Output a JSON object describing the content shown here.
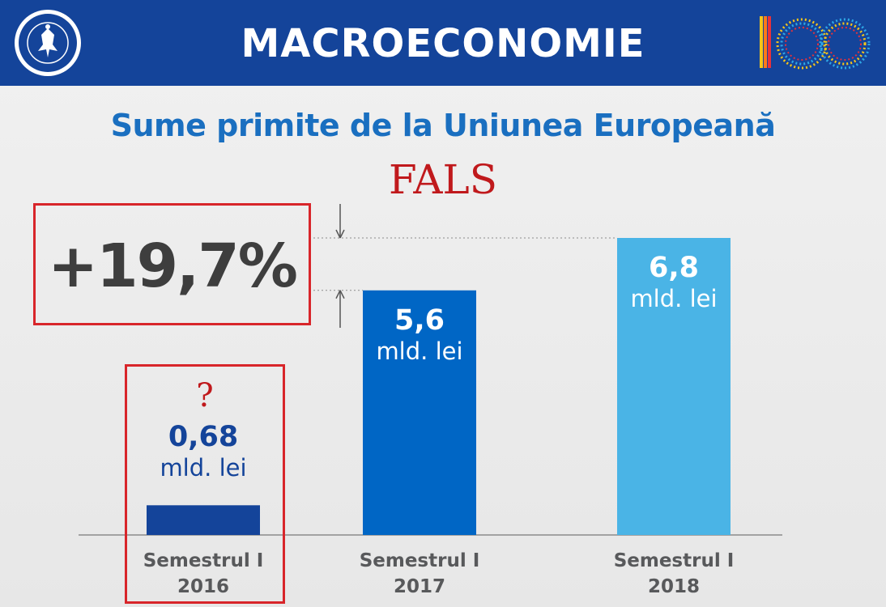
{
  "header": {
    "title": "MACROECONOMIE",
    "logo_icon": "government-of-romania-seal",
    "centenary_icon": "romania-centenary-100-logo",
    "background_color": "#14449a"
  },
  "chart_data": {
    "type": "bar",
    "title": "Sume primite de la Uniunea Europeană",
    "categories": [
      "Semestrul I 2016",
      "Semestrul I 2017",
      "Semestrul I 2018"
    ],
    "category_lines": [
      [
        "Semestrul I",
        "2016"
      ],
      [
        "Semestrul I",
        "2017"
      ],
      [
        "Semestrul I",
        "2018"
      ]
    ],
    "values": [
      0.68,
      5.6,
      6.8
    ],
    "value_labels": [
      "0,68",
      "5,6",
      "6,8"
    ],
    "unit": "mld. lei",
    "bar_colors": [
      "#14449a",
      "#0066c5",
      "#4ab4e6"
    ],
    "xlabel": "",
    "ylabel": "",
    "ylim": [
      0,
      6.8
    ],
    "grid": false,
    "legend": "none"
  },
  "annotations": {
    "verdict": "FALS",
    "growth": "+19,7%",
    "question_mark": "?",
    "highlight_color": "#d8252a"
  }
}
